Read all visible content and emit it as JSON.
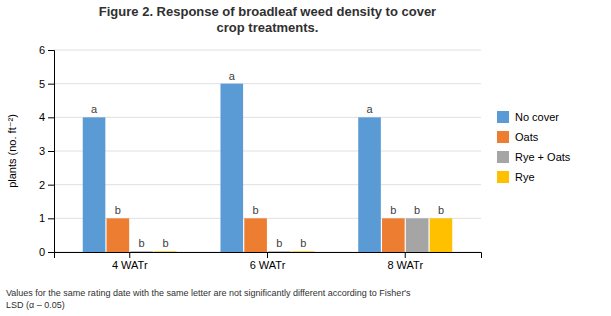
{
  "chart_data": {
    "type": "bar",
    "title": "Figure 2. Response of broadleaf weed density to cover\ncrop treatments.",
    "ylabel": "plants (no. ft⁻²)",
    "categories": [
      "4 WATr",
      "6 WATr",
      "8 WATr"
    ],
    "series": [
      {
        "name": "No cover",
        "color": "#5B9BD5",
        "values": [
          4,
          5,
          4
        ]
      },
      {
        "name": "Oats",
        "color": "#ED7D31",
        "values": [
          1,
          1,
          1
        ]
      },
      {
        "name": "Rye + Oats",
        "color": "#A5A5A5",
        "values": [
          0.02,
          0.02,
          1
        ]
      },
      {
        "name": "Rye",
        "color": "#FFC000",
        "values": [
          0.02,
          0.02,
          1
        ]
      }
    ],
    "annotations": [
      [
        "a",
        "b",
        "b",
        "b"
      ],
      [
        "a",
        "b",
        "b",
        "b"
      ],
      [
        "a",
        "b",
        "b",
        "b"
      ]
    ],
    "footnote": [
      "Values for the same rating date with the same letter are not significantly different according to Fisher's",
      "LSD (α – 0.05)"
    ],
    "ylim": [
      0,
      6
    ],
    "yticks": [
      0,
      1,
      2,
      3,
      4,
      5,
      6
    ],
    "grid": true,
    "legend": "right"
  }
}
